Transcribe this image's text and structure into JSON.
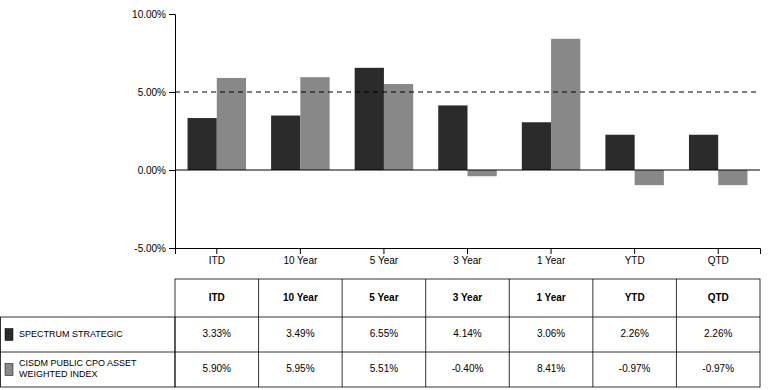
{
  "chart_data": {
    "type": "bar",
    "categories": [
      "ITD",
      "10 Year",
      "5 Year",
      "3 Year",
      "1 Year",
      "YTD",
      "QTD"
    ],
    "series": [
      {
        "name": "SPECTRUM STRATEGIC",
        "color": "#2b2b2b",
        "values": [
          3.33,
          3.49,
          6.55,
          4.14,
          3.06,
          2.26,
          2.26
        ]
      },
      {
        "name": "CISDM PUBLIC CPO ASSET\nWEIGHTED INDEX",
        "color": "#888888",
        "values": [
          5.9,
          5.95,
          5.51,
          -0.4,
          8.41,
          -0.97,
          -0.97
        ]
      }
    ],
    "ylim": [
      -5,
      10
    ],
    "yticks": [
      {
        "value": -5,
        "label": "-5.00%"
      },
      {
        "value": 0,
        "label": "0.00%"
      },
      {
        "value": 5,
        "label": "5.00%"
      },
      {
        "value": 10,
        "label": "10.00%"
      }
    ],
    "reference_line": 5,
    "grid": false,
    "table": {
      "headers": [
        "ITD",
        "10 Year",
        "5 Year",
        "3 Year",
        "1 Year",
        "YTD",
        "QTD"
      ],
      "rows": [
        [
          "3.33%",
          "3.49%",
          "6.55%",
          "4.14%",
          "3.06%",
          "2.26%",
          "2.26%"
        ],
        [
          "5.90%",
          "5.95%",
          "5.51%",
          "-0.40%",
          "8.41%",
          "-0.97%",
          "-0.97%"
        ]
      ]
    }
  }
}
